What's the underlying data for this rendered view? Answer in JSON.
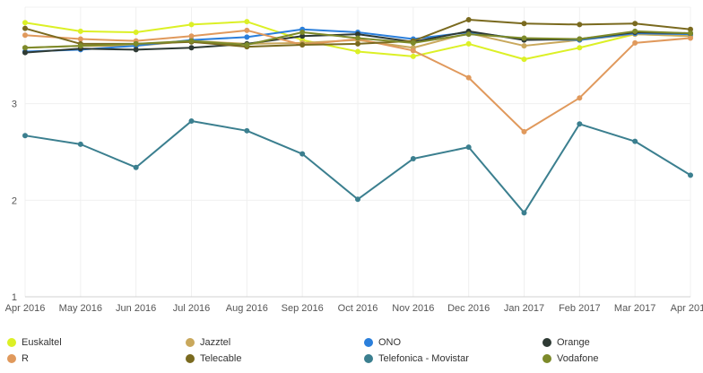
{
  "chart_data": {
    "type": "line",
    "title": "",
    "xlabel": "",
    "ylabel": "",
    "ylim": [
      1,
      4
    ],
    "y_ticks": [
      "1",
      "2",
      "3"
    ],
    "grid": true,
    "legend_position": "bottom",
    "categories": [
      "Apr 2016",
      "May 2016",
      "Jun 2016",
      "Jul 2016",
      "Aug 2016",
      "Sep 2016",
      "Oct 2016",
      "Nov 2016",
      "Dec 2016",
      "Jan 2017",
      "Feb 2017",
      "Mar 2017",
      "Apr 2017"
    ],
    "series": [
      {
        "name": "Euskaltel",
        "color": "#dcf026",
        "values": [
          3.84,
          3.75,
          3.74,
          3.82,
          3.85,
          3.66,
          3.54,
          3.49,
          3.62,
          3.46,
          3.58,
          3.72,
          3.7
        ]
      },
      {
        "name": "Jazztel",
        "color": "#c9a85c",
        "values": [
          3.58,
          3.6,
          3.6,
          3.65,
          3.62,
          3.63,
          3.66,
          3.58,
          3.73,
          3.6,
          3.66,
          3.72,
          3.7
        ]
      },
      {
        "name": "ONO",
        "color": "#2b7fdb",
        "values": [
          3.54,
          3.56,
          3.6,
          3.66,
          3.69,
          3.77,
          3.74,
          3.67,
          3.74,
          3.67,
          3.66,
          3.73,
          3.72
        ]
      },
      {
        "name": "Orange",
        "color": "#2e3a34",
        "values": [
          3.53,
          3.57,
          3.56,
          3.58,
          3.62,
          3.7,
          3.72,
          3.64,
          3.75,
          3.66,
          3.67,
          3.74,
          3.73
        ]
      },
      {
        "name": "R",
        "color": "#e0995c",
        "values": [
          3.71,
          3.67,
          3.65,
          3.7,
          3.76,
          3.61,
          3.67,
          3.55,
          3.27,
          2.71,
          3.06,
          3.63,
          3.68
        ]
      },
      {
        "name": "Telecable",
        "color": "#7a6a1f",
        "values": [
          3.78,
          3.62,
          3.62,
          3.64,
          3.59,
          3.61,
          3.62,
          3.65,
          3.87,
          3.83,
          3.82,
          3.83,
          3.77
        ]
      },
      {
        "name": "Telefonica - Movistar",
        "color": "#3b7f8f",
        "values": [
          2.67,
          2.58,
          2.34,
          2.82,
          2.72,
          2.48,
          2.01,
          2.43,
          2.55,
          1.87,
          2.79,
          2.61,
          2.26
        ]
      },
      {
        "name": "Vodafone",
        "color": "#7d8a2a",
        "values": [
          3.58,
          3.6,
          3.62,
          3.65,
          3.61,
          3.74,
          3.68,
          3.63,
          3.72,
          3.68,
          3.67,
          3.75,
          3.73
        ]
      }
    ]
  }
}
